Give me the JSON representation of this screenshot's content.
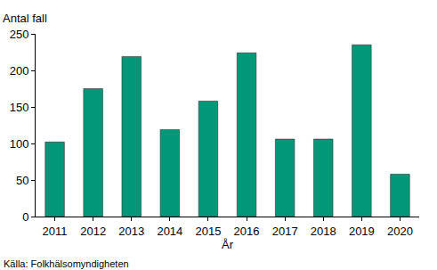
{
  "chart_data": {
    "type": "bar",
    "y_label": "Antal fall",
    "x_label": "År",
    "annotations": [
      "Källa: Folkhälsomyndigheten"
    ],
    "categories": [
      "2011",
      "2012",
      "2013",
      "2014",
      "2015",
      "2016",
      "2017",
      "2018",
      "2019",
      "2020"
    ],
    "values": [
      102,
      175,
      219,
      119,
      158,
      224,
      106,
      106,
      235,
      58
    ],
    "color": "#009879",
    "ylim": [
      0,
      250
    ],
    "yticks": [
      0,
      50,
      100,
      150,
      200,
      250
    ],
    "grid": false
  }
}
